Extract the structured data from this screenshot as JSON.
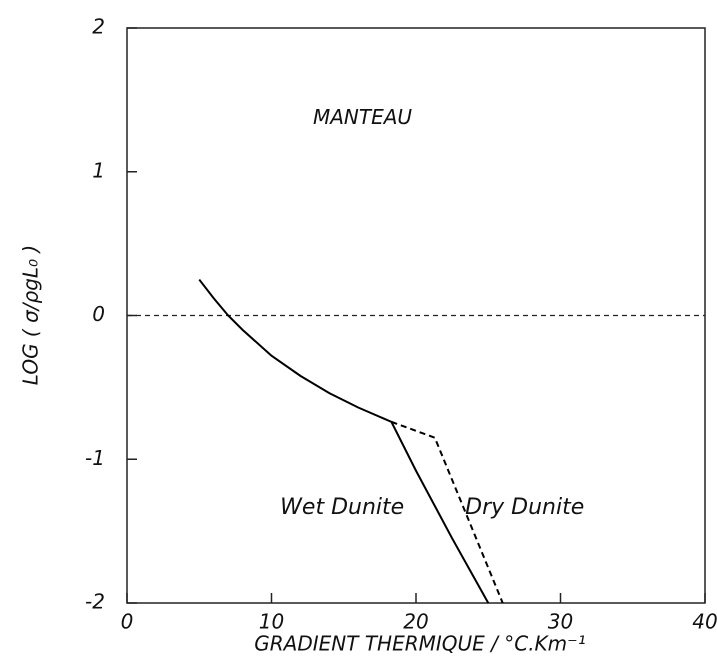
{
  "chart_data": {
    "type": "line",
    "x_label": "GRADIENT THERMIQUE / °C.Km⁻¹",
    "y_label": "LOG ( σ/ρgL₀ )",
    "annotation": "MANTEAU",
    "xlim": [
      0,
      40
    ],
    "xticks": [
      0,
      10,
      20,
      30,
      40
    ],
    "ylim": [
      -2,
      2
    ],
    "yticks": [
      -2,
      -1,
      0,
      1,
      2
    ],
    "reference_line": {
      "y": 0,
      "style": "dashed"
    },
    "series": [
      {
        "name": "Wet Dunite",
        "color": "#000000",
        "style": "solid",
        "x": [
          5,
          6,
          7,
          8,
          10,
          12,
          14,
          16,
          18.3,
          20,
          22.5,
          25
        ],
        "values": [
          0.25,
          0.12,
          0,
          -0.1,
          -0.28,
          -0.42,
          -0.54,
          -0.64,
          -0.74,
          -1.08,
          -1.55,
          -2
        ]
      },
      {
        "name": "Dry Dunite",
        "color": "#000000",
        "style": "dashed",
        "x": [
          18.3,
          21.3,
          26
        ],
        "values": [
          -0.74,
          -0.85,
          -2
        ]
      }
    ]
  }
}
